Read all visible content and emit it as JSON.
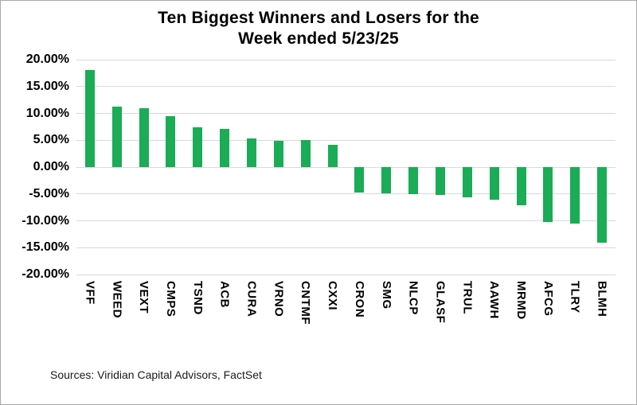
{
  "title": {
    "line1": "Ten Biggest Winners and Losers for the",
    "line2": "Week ended 5/23/25"
  },
  "source_note": "Sources: Viridian Capital Advisors, FactSet",
  "colors": {
    "bar": "#1AAC56",
    "gridline": "#D9D9D9",
    "text": "#000000",
    "background": "#FFFFFF"
  },
  "chart_data": {
    "type": "bar",
    "title": "Ten Biggest Winners and Losers for the Week ended 5/23/25",
    "xlabel": "",
    "ylabel": "",
    "categories": [
      "VFF",
      "WEED",
      "VEXT",
      "CMPS",
      "TSND",
      "ACB",
      "CURA",
      "VRNO",
      "CNTMF",
      "CXXI",
      "CRON",
      "SMG",
      "NLCP",
      "GLASF",
      "TRUL",
      "AAWH",
      "MRMD",
      "AFCG",
      "TLRY",
      "BLMH"
    ],
    "values": [
      18.1,
      11.3,
      10.9,
      9.5,
      7.4,
      7.1,
      5.3,
      4.9,
      5.0,
      4.2,
      -4.8,
      -4.9,
      -5.1,
      -5.2,
      -5.6,
      -6.0,
      -7.1,
      -10.2,
      -10.5,
      -14.0
    ],
    "value_unit": "percent",
    "ylim": [
      -20,
      20
    ],
    "ytick_step": 5,
    "yticks": [
      "20.00%",
      "15.00%",
      "10.00%",
      "5.00%",
      "0.00%",
      "-5.00%",
      "-10.00%",
      "-15.00%",
      "-20.00%"
    ],
    "grid": true,
    "legend": false,
    "bar_color": "#1AAC56"
  }
}
